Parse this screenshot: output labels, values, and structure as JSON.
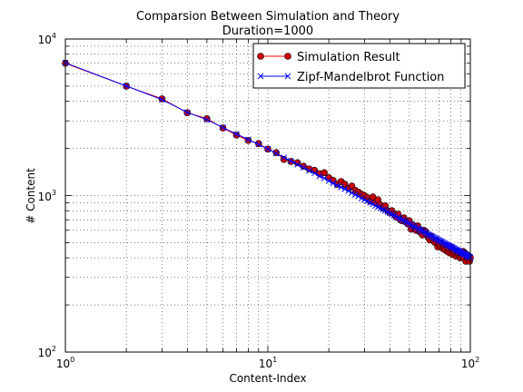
{
  "chart_data": {
    "type": "line",
    "title": "Comparsion Between Simulation and Theory",
    "subtitle": "Duration=1000",
    "xlabel": "Content-Index",
    "ylabel": "# Content",
    "xscale": "log",
    "yscale": "log",
    "xlim": [
      1,
      100
    ],
    "ylim": [
      100,
      10000
    ],
    "grid": true,
    "legend_position": "top-right",
    "x_ticks": [
      {
        "value": 1,
        "base": "10",
        "exp": "0"
      },
      {
        "value": 10,
        "base": "10",
        "exp": "1"
      },
      {
        "value": 100,
        "base": "10",
        "exp": "2"
      }
    ],
    "y_ticks": [
      {
        "value": 100,
        "base": "10",
        "exp": "2"
      },
      {
        "value": 1000,
        "base": "10",
        "exp": "3"
      },
      {
        "value": 10000,
        "base": "10",
        "exp": "4"
      }
    ],
    "series": [
      {
        "name": "Simulation Result",
        "color": "#ff0000",
        "marker": "circle",
        "line_color": "#ff0000",
        "marker_fill": "#cc0000",
        "marker_edge": "#000000",
        "x": [
          1,
          2,
          3,
          4,
          5,
          6,
          7,
          8,
          9,
          10,
          11,
          12,
          13,
          14,
          15,
          16,
          17,
          18,
          19,
          20,
          21,
          22,
          23,
          24,
          25,
          26,
          27,
          28,
          29,
          30,
          31,
          32,
          33,
          34,
          35,
          36,
          37,
          38,
          39,
          40,
          41,
          42,
          43,
          44,
          45,
          46,
          47,
          48,
          49,
          50,
          51,
          52,
          53,
          54,
          55,
          56,
          57,
          58,
          59,
          60,
          61,
          62,
          63,
          64,
          65,
          66,
          67,
          68,
          69,
          70,
          71,
          72,
          73,
          74,
          75,
          76,
          77,
          78,
          79,
          80,
          81,
          82,
          83,
          84,
          85,
          86,
          87,
          88,
          89,
          90,
          91,
          92,
          93,
          94,
          95,
          96,
          97,
          98,
          99,
          100
        ],
        "y": [
          7000,
          5000,
          4150,
          3380,
          3100,
          2700,
          2430,
          2250,
          2150,
          1980,
          1880,
          1700,
          1650,
          1620,
          1540,
          1480,
          1450,
          1380,
          1400,
          1300,
          1250,
          1180,
          1230,
          1180,
          1110,
          1150,
          1080,
          1050,
          1020,
          1000,
          970,
          920,
          980,
          900,
          940,
          870,
          830,
          860,
          800,
          780,
          800,
          760,
          730,
          760,
          700,
          690,
          720,
          680,
          660,
          690,
          610,
          650,
          620,
          600,
          640,
          590,
          580,
          560,
          600,
          590,
          560,
          540,
          520,
          550,
          530,
          510,
          500,
          520,
          470,
          490,
          480,
          500,
          460,
          470,
          450,
          480,
          440,
          460,
          430,
          470,
          440,
          420,
          450,
          430,
          410,
          440,
          420,
          430,
          400,
          420,
          410,
          440,
          400,
          430,
          380,
          420,
          400,
          390,
          380,
          400
        ]
      },
      {
        "name": "Zipf-Mandelbrot Function",
        "color": "#0000ff",
        "marker": "x",
        "x": [
          1,
          2,
          3,
          4,
          5,
          6,
          7,
          8,
          9,
          10,
          11,
          12,
          13,
          14,
          15,
          16,
          17,
          18,
          19,
          20,
          21,
          22,
          23,
          24,
          25,
          26,
          27,
          28,
          29,
          30,
          31,
          32,
          33,
          34,
          35,
          36,
          37,
          38,
          39,
          40,
          41,
          42,
          43,
          44,
          45,
          46,
          47,
          48,
          49,
          50,
          51,
          52,
          53,
          54,
          55,
          56,
          57,
          58,
          59,
          60,
          61,
          62,
          63,
          64,
          65,
          66,
          67,
          68,
          69,
          70,
          71,
          72,
          73,
          74,
          75,
          76,
          77,
          78,
          79,
          80,
          81,
          82,
          83,
          84,
          85,
          86,
          87,
          88,
          89,
          90,
          91,
          92,
          93,
          94,
          95,
          96,
          97,
          98,
          99,
          100
        ],
        "y": [
          7050,
          5010,
          4100,
          3400,
          3050,
          2720,
          2470,
          2280,
          2120,
          1980,
          1860,
          1750,
          1660,
          1580,
          1510,
          1440,
          1390,
          1330,
          1290,
          1240,
          1200,
          1160,
          1130,
          1100,
          1070,
          1040,
          1010,
          990,
          960,
          940,
          920,
          900,
          880,
          860,
          845,
          830,
          815,
          800,
          785,
          770,
          760,
          745,
          735,
          720,
          710,
          700,
          690,
          680,
          670,
          660,
          650,
          640,
          632,
          624,
          616,
          608,
          600,
          593,
          586,
          579,
          572,
          565,
          559,
          553,
          547,
          541,
          535,
          530,
          524,
          519,
          514,
          509,
          504,
          499,
          494,
          489,
          485,
          480,
          476,
          472,
          468,
          464,
          460,
          456,
          452,
          448,
          445,
          441,
          438,
          434,
          431,
          427,
          424,
          421,
          418,
          415,
          412,
          409,
          406,
          403
        ]
      }
    ]
  }
}
